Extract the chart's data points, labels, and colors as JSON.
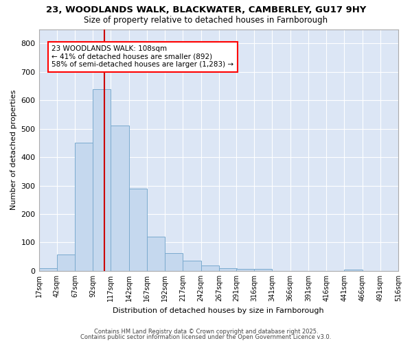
{
  "title1": "23, WOODLANDS WALK, BLACKWATER, CAMBERLEY, GU17 9HY",
  "title2": "Size of property relative to detached houses in Farnborough",
  "xlabel": "Distribution of detached houses by size in Farnborough",
  "ylabel": "Number of detached properties",
  "bar_color": "#c5d8ee",
  "bar_edge_color": "#7aaace",
  "background_color": "#dce6f5",
  "grid_color": "#ffffff",
  "red_line_color": "#cc0000",
  "annotation_line1": "23 WOODLANDS WALK: 108sqm",
  "annotation_line2": "← 41% of detached houses are smaller (892)",
  "annotation_line3": "58% of semi-detached houses are larger (1,283) →",
  "footer1": "Contains HM Land Registry data © Crown copyright and database right 2025.",
  "footer2": "Contains public sector information licensed under the Open Government Licence v3.0.",
  "bins": [
    17,
    42,
    67,
    92,
    117,
    142,
    167,
    192,
    217,
    242,
    267,
    291,
    316,
    341,
    366,
    391,
    416,
    441,
    466,
    491,
    516
  ],
  "counts": [
    10,
    57,
    450,
    640,
    510,
    290,
    120,
    62,
    35,
    20,
    10,
    8,
    8,
    0,
    0,
    0,
    0,
    5,
    0,
    0
  ],
  "ylim": [
    0,
    850
  ],
  "yticks": [
    0,
    100,
    200,
    300,
    400,
    500,
    600,
    700,
    800
  ],
  "fig_bg": "#ffffff"
}
